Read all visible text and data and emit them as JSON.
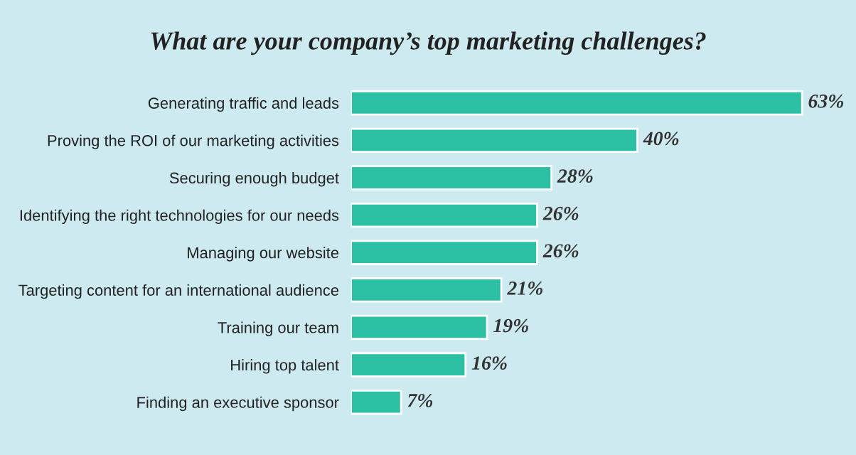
{
  "chart_data": {
    "type": "bar",
    "orientation": "horizontal",
    "title": "What are your company’s top marketing challenges?",
    "categories": [
      "Generating traffic and leads",
      "Proving the ROI of our marketing activities",
      "Securing enough budget",
      "Identifying the right technologies for our needs",
      "Managing our website",
      "Targeting content for an international audience",
      "Training our team",
      "Hiring top talent",
      "Finding an executive sponsor"
    ],
    "values": [
      63,
      40,
      28,
      26,
      26,
      21,
      19,
      16,
      7
    ],
    "value_labels": [
      "63%",
      "40%",
      "28%",
      "26%",
      "26%",
      "21%",
      "19%",
      "16%",
      "7%"
    ],
    "color": "#2bbfa3",
    "grid": false,
    "legend": false
  }
}
